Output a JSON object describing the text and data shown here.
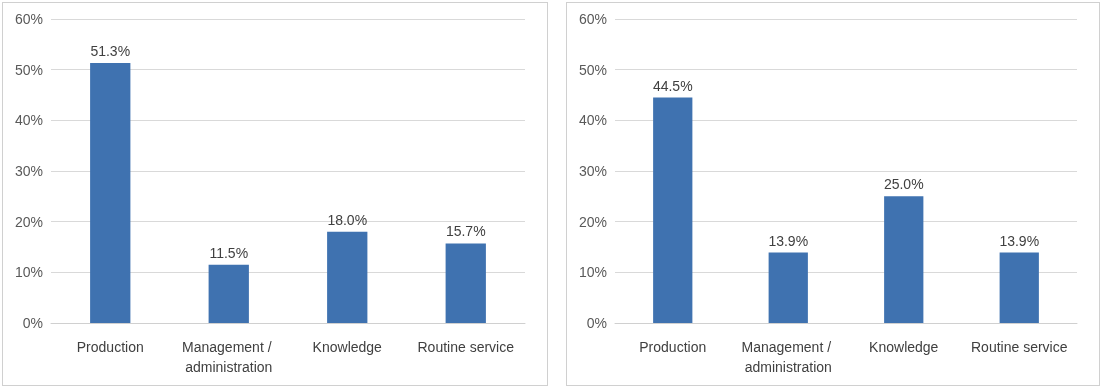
{
  "chart_data": [
    {
      "type": "bar",
      "categories": [
        "Production",
        "Management / administration",
        "Knowledge",
        "Routine service"
      ],
      "values": [
        51.3,
        11.5,
        18.0,
        15.7
      ],
      "value_labels": [
        "51.3%",
        "11.5%",
        "18.0%",
        "15.7%"
      ],
      "color": "#3f72b0",
      "ylim": [
        0,
        60
      ],
      "yticks": [
        {
          "value": 0,
          "label": "0%"
        },
        {
          "value": 10,
          "label": "10%"
        },
        {
          "value": 20,
          "label": "20%"
        },
        {
          "value": 30,
          "label": "30%"
        },
        {
          "value": 40,
          "label": "40%"
        },
        {
          "value": 50,
          "label": "50%"
        },
        {
          "value": 60,
          "label": "60%"
        }
      ],
      "grid": "y"
    },
    {
      "type": "bar",
      "categories": [
        "Production",
        "Management / administration",
        "Knowledge",
        "Routine service"
      ],
      "values": [
        44.5,
        13.9,
        25.0,
        13.9
      ],
      "value_labels": [
        "44.5%",
        "13.9%",
        "25.0%",
        "13.9%"
      ],
      "color": "#3f72b0",
      "ylim": [
        0,
        60
      ],
      "yticks": [
        {
          "value": 0,
          "label": "0%"
        },
        {
          "value": 10,
          "label": "10%"
        },
        {
          "value": 20,
          "label": "20%"
        },
        {
          "value": 30,
          "label": "30%"
        },
        {
          "value": 40,
          "label": "40%"
        },
        {
          "value": 50,
          "label": "50%"
        },
        {
          "value": 60,
          "label": "60%"
        }
      ],
      "grid": "y"
    }
  ]
}
